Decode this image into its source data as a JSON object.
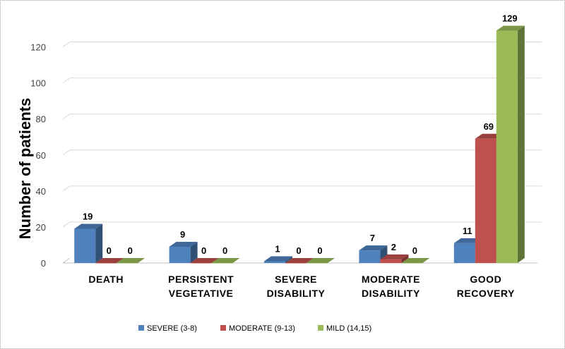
{
  "chart_data": {
    "type": "bar",
    "title": "",
    "xlabel": "",
    "ylabel": "Number of  patients",
    "ylim": [
      0,
      130
    ],
    "yticks": [
      0,
      20,
      40,
      60,
      80,
      100,
      120
    ],
    "grid": true,
    "legend_position": "bottom",
    "categories": [
      [
        "DEATH"
      ],
      [
        "PERSISTENT",
        "VEGETATIVE"
      ],
      [
        "SEVERE",
        "DISABILITY"
      ],
      [
        "MODERATE",
        "DISABILITY"
      ],
      [
        "GOOD",
        "RECOVERY"
      ]
    ],
    "series": [
      {
        "name": "SEVERE (3-8)",
        "color": "#4f81bd",
        "values": [
          19,
          9,
          1,
          7,
          11
        ]
      },
      {
        "name": "MODERATE (9-13)",
        "color": "#c0504d",
        "values": [
          0,
          0,
          0,
          2,
          69
        ]
      },
      {
        "name": "MILD (14,15)",
        "color": "#9bbb59",
        "values": [
          0,
          0,
          0,
          0,
          129
        ]
      }
    ]
  }
}
